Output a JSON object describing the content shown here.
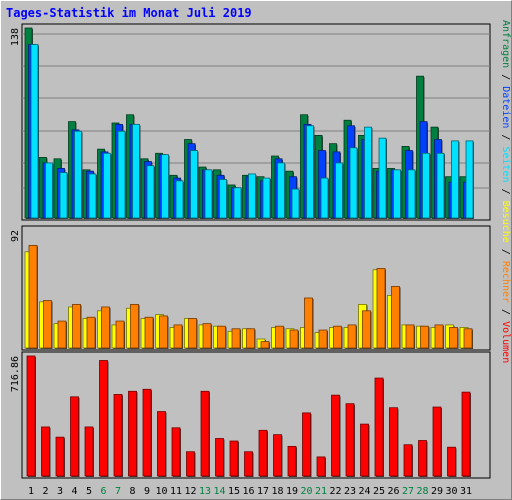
{
  "title": "Tages-Statistik im Monat Juli 2019",
  "legend": {
    "top": [
      "Anfragen",
      "Dateien",
      "Seiten",
      "Besuche",
      "Rechner",
      "Volumen"
    ],
    "separator": " / "
  },
  "colors": {
    "background": "#c0c0c0",
    "panel": "#c0c0c0",
    "grid": "#808080",
    "title": "#0000ff",
    "anfragen": "#008040",
    "dateien": "#0040ff",
    "seiten": "#00e0ff",
    "besuche": "#ffff00",
    "rechner": "#ff8000",
    "volumen": "#ff0000",
    "weekday": "#000000",
    "weekend": "#008040"
  },
  "chart_data": [
    {
      "type": "bar",
      "title": "",
      "ymax_label": "138",
      "ylim": [
        0,
        138
      ],
      "categories": [
        "1",
        "2",
        "3",
        "4",
        "5",
        "6",
        "7",
        "8",
        "9",
        "10",
        "11",
        "12",
        "13",
        "14",
        "15",
        "16",
        "17",
        "18",
        "19",
        "20",
        "21",
        "22",
        "23",
        "24",
        "25",
        "26",
        "27",
        "28",
        "29",
        "30",
        "31"
      ],
      "weekend": [
        "6",
        "7",
        "13",
        "14",
        "20",
        "21",
        "27",
        "28"
      ],
      "series": [
        {
          "name": "Anfragen",
          "values": [
            138,
            44,
            43,
            70,
            35,
            50,
            69,
            75,
            43,
            47,
            31,
            57,
            37,
            35,
            24,
            31,
            30,
            45,
            34,
            75,
            60,
            54,
            71,
            60,
            36,
            36,
            52,
            103,
            66,
            30,
            30
          ]
        },
        {
          "name": "Dateien",
          "values": [
            126,
            40,
            36,
            64,
            34,
            48,
            68,
            68,
            41,
            46,
            29,
            54,
            35,
            31,
            22,
            30,
            27,
            43,
            30,
            68,
            49,
            48,
            67,
            57,
            34,
            35,
            49,
            70,
            57,
            26,
            26
          ]
        },
        {
          "name": "Seiten",
          "values": [
            126,
            40,
            33,
            63,
            32,
            47,
            63,
            68,
            38,
            46,
            27,
            49,
            35,
            28,
            22,
            32,
            29,
            40,
            21,
            67,
            29,
            40,
            51,
            66,
            58,
            35,
            35,
            47,
            47,
            56,
            56
          ]
        }
      ]
    },
    {
      "type": "bar",
      "title": "",
      "ymax_label": "92",
      "ylim": [
        0,
        92
      ],
      "categories": [
        "1",
        "2",
        "3",
        "4",
        "5",
        "6",
        "7",
        "8",
        "9",
        "10",
        "11",
        "12",
        "13",
        "14",
        "15",
        "16",
        "17",
        "18",
        "19",
        "20",
        "21",
        "22",
        "23",
        "24",
        "25",
        "26",
        "27",
        "28",
        "29",
        "30",
        "31"
      ],
      "series": [
        {
          "name": "Besuche",
          "values": [
            75,
            36,
            19,
            32,
            23,
            29,
            18,
            31,
            23,
            26,
            16,
            23,
            18,
            17,
            13,
            15,
            7,
            16,
            15,
            16,
            12,
            16,
            16,
            34,
            61,
            41,
            18,
            17,
            16,
            18,
            16
          ]
        },
        {
          "name": "Rechner",
          "values": [
            80,
            37,
            21,
            34,
            24,
            32,
            21,
            34,
            24,
            25,
            18,
            23,
            19,
            17,
            15,
            15,
            5,
            17,
            14,
            39,
            14,
            17,
            18,
            29,
            62,
            48,
            18,
            17,
            18,
            16,
            15
          ]
        }
      ]
    },
    {
      "type": "bar",
      "title": "",
      "ymax_label": "716.86",
      "ylim": [
        0,
        716.86
      ],
      "categories": [
        "1",
        "2",
        "3",
        "4",
        "5",
        "6",
        "7",
        "8",
        "9",
        "10",
        "11",
        "12",
        "13",
        "14",
        "15",
        "16",
        "17",
        "18",
        "19",
        "20",
        "21",
        "22",
        "23",
        "24",
        "25",
        "26",
        "27",
        "28",
        "29",
        "30",
        "31"
      ],
      "series": [
        {
          "name": "Volumen",
          "values": [
            716.86,
            293,
            232,
            473,
            293,
            690,
            487,
            506,
            518,
            385,
            288,
            145,
            506,
            224,
            209,
            145,
            273,
            247,
            177,
            377,
            114,
            483,
            432,
            310,
            585,
            408,
            187,
            212,
            412,
            172,
            501
          ]
        }
      ]
    }
  ]
}
